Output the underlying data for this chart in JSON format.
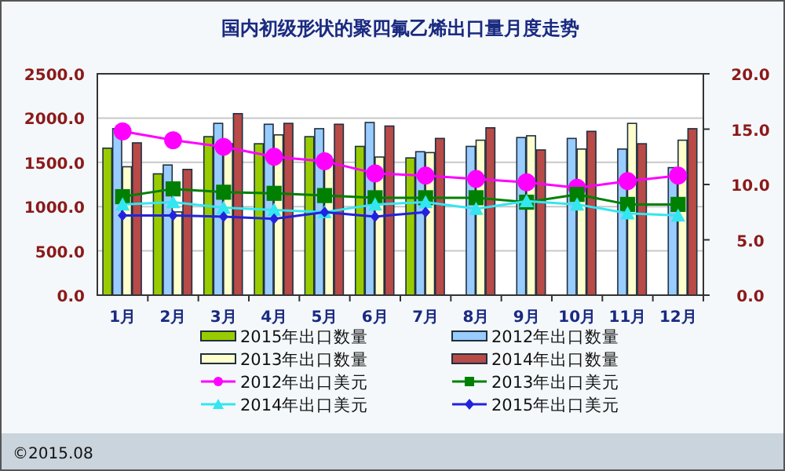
{
  "chart_data": {
    "type": "bar",
    "title": "国内初级形状的聚四氟乙烯出口量月度走势",
    "categories": [
      "1月",
      "2月",
      "3月",
      "4月",
      "5月",
      "6月",
      "7月",
      "8月",
      "9月",
      "10月",
      "11月",
      "12月"
    ],
    "series": [
      {
        "name": "2015年出口数量",
        "color": "#99cc00",
        "values": [
          1660,
          1370,
          1790,
          1710,
          1790,
          1680,
          1550,
          null,
          null,
          null,
          null,
          null
        ]
      },
      {
        "name": "2012年出口数量",
        "color": "#99ccff",
        "values": [
          1880,
          1470,
          1940,
          1930,
          1880,
          1950,
          1620,
          1680,
          1780,
          1770,
          1650,
          1440
        ]
      },
      {
        "name": "2013年出口数量",
        "color": "#ffffcc",
        "values": [
          1450,
          940,
          1710,
          1810,
          1530,
          1560,
          1610,
          1750,
          1800,
          1650,
          1940,
          1750
        ]
      },
      {
        "name": "2014年出口数量",
        "color": "#b84a48",
        "values": [
          1720,
          1420,
          2050,
          1940,
          1930,
          1910,
          1770,
          1890,
          1640,
          1850,
          1710,
          1880
        ]
      },
      {
        "name": "2012年出口美元",
        "type": "line",
        "axis": "y2",
        "color": "#ff00ff",
        "marker": "circle",
        "values": [
          14.8,
          14.0,
          13.4,
          12.5,
          12.1,
          11.0,
          10.8,
          10.5,
          10.2,
          9.7,
          10.3,
          10.8
        ]
      },
      {
        "name": "2013年出口美元",
        "type": "line",
        "axis": "y2",
        "color": "#008000",
        "marker": "square",
        "values": [
          8.9,
          9.6,
          9.3,
          9.2,
          9.0,
          8.8,
          8.8,
          8.8,
          8.4,
          9.1,
          8.2,
          8.2
        ]
      },
      {
        "name": "2014年出口美元",
        "type": "line",
        "axis": "y2",
        "color": "#33e6f0",
        "marker": "triangle",
        "values": [
          8.2,
          8.4,
          7.9,
          7.7,
          7.5,
          8.2,
          8.4,
          7.8,
          8.5,
          8.2,
          7.4,
          7.2
        ]
      },
      {
        "name": "2015年出口美元",
        "type": "line",
        "axis": "y2",
        "color": "#2222dd",
        "marker": "diamond",
        "values": [
          7.2,
          7.2,
          7.1,
          6.9,
          7.5,
          7.1,
          7.5,
          null,
          null,
          null,
          null,
          null
        ]
      }
    ],
    "ylim": [
      0,
      2500
    ],
    "yticks": [
      {
        "value": 0,
        "label": "0.0"
      },
      {
        "value": 500,
        "label": "500.0"
      },
      {
        "value": 1000,
        "label": "1000.0"
      },
      {
        "value": 1500,
        "label": "1500.0"
      },
      {
        "value": 2000,
        "label": "2000.0"
      },
      {
        "value": 2500,
        "label": "2500.0"
      }
    ],
    "y2lim": [
      0,
      20
    ],
    "y2ticks": [
      {
        "value": 0,
        "label": "0.0"
      },
      {
        "value": 5,
        "label": "5.0"
      },
      {
        "value": 10,
        "label": "10.0"
      },
      {
        "value": 15,
        "label": "15.0"
      },
      {
        "value": 20,
        "label": "20.0"
      }
    ],
    "grid": "y",
    "legend": "bottom",
    "line_style": "solid",
    "annotations": [
      "©2015.08"
    ]
  }
}
